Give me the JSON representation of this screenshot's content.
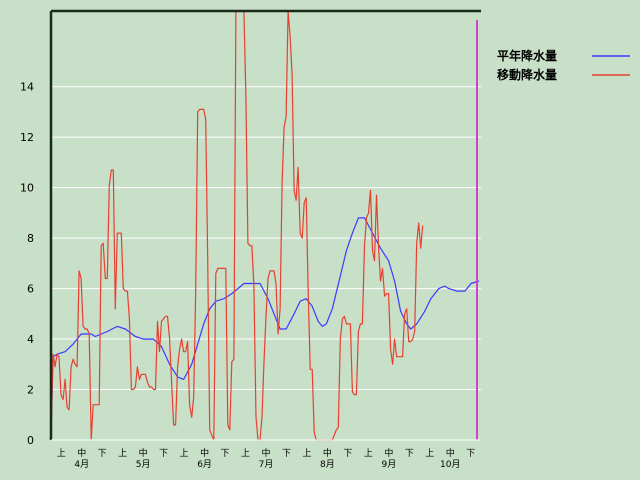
{
  "chart_data": {
    "type": "line",
    "title": "",
    "xlabel": "",
    "ylabel": "",
    "ylim": [
      0,
      17
    ],
    "yticks": [
      0,
      2,
      4,
      6,
      8,
      10,
      12,
      14
    ],
    "grid": true,
    "legend_position": "top-right",
    "x_period_labels": [
      "上",
      "中",
      "下",
      "上",
      "中",
      "下",
      "上",
      "中",
      "下",
      "上",
      "中",
      "下",
      "上",
      "中",
      "下",
      "上",
      "中",
      "下",
      "上",
      "中",
      "下"
    ],
    "x_month_labels": [
      "4月",
      "5月",
      "6月",
      "7月",
      "8月",
      "9月",
      "10月"
    ],
    "n_days": 214,
    "series": [
      {
        "name": "平年降水量",
        "color": "#3a3aff",
        "points": [
          [
            0,
            0
          ],
          [
            1,
            3.3
          ],
          [
            3,
            3.4
          ],
          [
            7,
            3.5
          ],
          [
            11,
            3.8
          ],
          [
            15,
            4.2
          ],
          [
            20,
            4.2
          ],
          [
            22,
            4.1
          ],
          [
            28,
            4.3
          ],
          [
            33,
            4.5
          ],
          [
            37,
            4.4
          ],
          [
            42,
            4.1
          ],
          [
            46,
            4.0
          ],
          [
            51,
            4.0
          ],
          [
            55,
            3.7
          ],
          [
            59,
            3.0
          ],
          [
            63,
            2.5
          ],
          [
            66,
            2.4
          ],
          [
            70,
            3.0
          ],
          [
            73,
            3.8
          ],
          [
            76,
            4.6
          ],
          [
            79,
            5.2
          ],
          [
            82,
            5.5
          ],
          [
            86,
            5.6
          ],
          [
            90,
            5.8
          ],
          [
            93,
            6.0
          ],
          [
            96,
            6.2
          ],
          [
            104,
            6.2
          ],
          [
            108,
            5.6
          ],
          [
            111,
            5.0
          ],
          [
            114,
            4.4
          ],
          [
            117,
            4.4
          ],
          [
            121,
            5.0
          ],
          [
            124,
            5.5
          ],
          [
            127,
            5.6
          ],
          [
            130,
            5.3
          ],
          [
            133,
            4.7
          ],
          [
            135,
            4.5
          ],
          [
            137,
            4.6
          ],
          [
            140,
            5.2
          ],
          [
            144,
            6.5
          ],
          [
            147,
            7.5
          ],
          [
            150,
            8.2
          ],
          [
            153,
            8.8
          ],
          [
            156,
            8.8
          ],
          [
            160,
            8.2
          ],
          [
            164,
            7.6
          ],
          [
            168,
            7.1
          ],
          [
            171,
            6.3
          ],
          [
            174,
            5.1
          ],
          [
            177,
            4.6
          ],
          [
            179,
            4.4
          ],
          [
            182,
            4.6
          ],
          [
            186,
            5.1
          ],
          [
            189,
            5.6
          ],
          [
            193,
            6.0
          ],
          [
            196,
            6.1
          ],
          [
            198,
            6.0
          ],
          [
            202,
            5.9
          ],
          [
            206,
            5.9
          ],
          [
            209,
            6.2
          ],
          [
            213,
            6.3
          ]
        ]
      },
      {
        "name": "移動降水量",
        "color": "#e84030",
        "points": [
          [
            0,
            0
          ],
          [
            1,
            3.4
          ],
          [
            2,
            2.9
          ],
          [
            3,
            3.4
          ],
          [
            4,
            3.3
          ],
          [
            5,
            1.8
          ],
          [
            6,
            1.6
          ],
          [
            7,
            2.4
          ],
          [
            8,
            1.3
          ],
          [
            9,
            1.2
          ],
          [
            10,
            2.9
          ],
          [
            11,
            3.2
          ],
          [
            12,
            3.0
          ],
          [
            13,
            2.9
          ],
          [
            14,
            6.7
          ],
          [
            15,
            6.4
          ],
          [
            16,
            4.5
          ],
          [
            17,
            4.4
          ],
          [
            18,
            4.4
          ],
          [
            19,
            4.2
          ],
          [
            20,
            0.0
          ],
          [
            21,
            1.4
          ],
          [
            22,
            1.4
          ],
          [
            23,
            1.4
          ],
          [
            24,
            1.4
          ],
          [
            25,
            7.7
          ],
          [
            26,
            7.8
          ],
          [
            27,
            6.4
          ],
          [
            28,
            6.4
          ],
          [
            29,
            10.1
          ],
          [
            30,
            10.7
          ],
          [
            31,
            10.7
          ],
          [
            32,
            5.2
          ],
          [
            33,
            8.2
          ],
          [
            34,
            8.2
          ],
          [
            35,
            8.2
          ],
          [
            36,
            6.0
          ],
          [
            37,
            5.9
          ],
          [
            38,
            5.9
          ],
          [
            39,
            4.8
          ],
          [
            40,
            2.0
          ],
          [
            41,
            2.0
          ],
          [
            42,
            2.1
          ],
          [
            43,
            2.9
          ],
          [
            44,
            2.4
          ],
          [
            45,
            2.6
          ],
          [
            46,
            2.6
          ],
          [
            47,
            2.6
          ],
          [
            48,
            2.3
          ],
          [
            49,
            2.1
          ],
          [
            50,
            2.1
          ],
          [
            51,
            2.0
          ],
          [
            52,
            2.0
          ],
          [
            53,
            4.7
          ],
          [
            54,
            3.5
          ],
          [
            55,
            4.7
          ],
          [
            56,
            4.8
          ],
          [
            57,
            4.9
          ],
          [
            58,
            4.9
          ],
          [
            59,
            4.0
          ],
          [
            60,
            2.3
          ],
          [
            61,
            0.6
          ],
          [
            62,
            0.6
          ],
          [
            63,
            2.9
          ],
          [
            64,
            3.6
          ],
          [
            65,
            4.0
          ],
          [
            66,
            3.5
          ],
          [
            67,
            3.5
          ],
          [
            68,
            3.9
          ],
          [
            69,
            1.4
          ],
          [
            70,
            0.9
          ],
          [
            71,
            1.7
          ],
          [
            72,
            5.9
          ],
          [
            73,
            13.0
          ],
          [
            74,
            13.1
          ],
          [
            75,
            13.1
          ],
          [
            76,
            13.1
          ],
          [
            77,
            12.7
          ],
          [
            78,
            7.2
          ],
          [
            79,
            0.4
          ],
          [
            80,
            0.2
          ],
          [
            81,
            0.0
          ],
          [
            82,
            6.6
          ],
          [
            83,
            6.8
          ],
          [
            84,
            6.8
          ],
          [
            85,
            6.8
          ],
          [
            86,
            6.8
          ],
          [
            87,
            6.8
          ],
          [
            88,
            0.6
          ],
          [
            89,
            0.4
          ],
          [
            90,
            3.1
          ],
          [
            91,
            3.2
          ],
          [
            92,
            17.5
          ],
          [
            96,
            17.5
          ],
          [
            97,
            13.6
          ],
          [
            98,
            7.8
          ],
          [
            99,
            7.7
          ],
          [
            100,
            7.7
          ],
          [
            101,
            6.1
          ],
          [
            102,
            0.9
          ],
          [
            103,
            0.0
          ],
          [
            104,
            0.0
          ],
          [
            105,
            0.9
          ],
          [
            106,
            3.1
          ],
          [
            107,
            4.9
          ],
          [
            108,
            6.4
          ],
          [
            109,
            6.7
          ],
          [
            110,
            6.7
          ],
          [
            111,
            6.7
          ],
          [
            112,
            6.2
          ],
          [
            113,
            4.2
          ],
          [
            114,
            5.2
          ],
          [
            115,
            10.2
          ],
          [
            116,
            12.4
          ],
          [
            117,
            12.8
          ],
          [
            118,
            17.5
          ],
          [
            119,
            16.0
          ],
          [
            120,
            14.5
          ],
          [
            121,
            9.9
          ],
          [
            122,
            9.5
          ],
          [
            123,
            10.8
          ],
          [
            124,
            8.2
          ],
          [
            125,
            8.0
          ],
          [
            126,
            9.4
          ],
          [
            127,
            9.6
          ],
          [
            128,
            5.9
          ],
          [
            129,
            2.8
          ],
          [
            130,
            2.8
          ],
          [
            131,
            0.3
          ],
          [
            132,
            0.0
          ],
          [
            133,
            0.0
          ],
          [
            134,
            0.0
          ],
          [
            135,
            0.0
          ],
          [
            136,
            0.0
          ],
          [
            137,
            0.0
          ],
          [
            138,
            0.0
          ],
          [
            139,
            0.0
          ],
          [
            140,
            0.0
          ],
          [
            141,
            0.2
          ],
          [
            142,
            0.4
          ],
          [
            143,
            0.5
          ],
          [
            144,
            4.0
          ],
          [
            145,
            4.8
          ],
          [
            146,
            4.9
          ],
          [
            147,
            4.6
          ],
          [
            148,
            4.6
          ],
          [
            149,
            4.6
          ],
          [
            150,
            1.9
          ],
          [
            151,
            1.8
          ],
          [
            152,
            1.8
          ],
          [
            153,
            4.3
          ],
          [
            154,
            4.6
          ],
          [
            155,
            4.6
          ],
          [
            156,
            7.7
          ],
          [
            157,
            8.8
          ],
          [
            158,
            9.0
          ],
          [
            159,
            9.9
          ],
          [
            160,
            7.5
          ],
          [
            161,
            7.1
          ],
          [
            162,
            9.7
          ],
          [
            163,
            7.7
          ],
          [
            164,
            6.3
          ],
          [
            165,
            6.8
          ],
          [
            166,
            5.7
          ],
          [
            167,
            5.8
          ],
          [
            168,
            5.8
          ],
          [
            169,
            3.6
          ],
          [
            170,
            3.0
          ],
          [
            171,
            4.0
          ],
          [
            172,
            3.3
          ],
          [
            173,
            3.3
          ],
          [
            174,
            3.3
          ],
          [
            175,
            3.3
          ],
          [
            176,
            5.0
          ],
          [
            177,
            5.2
          ],
          [
            178,
            3.9
          ],
          [
            179,
            3.9
          ],
          [
            180,
            4.0
          ],
          [
            181,
            4.3
          ],
          [
            182,
            7.8
          ],
          [
            183,
            8.6
          ],
          [
            184,
            7.6
          ],
          [
            185,
            8.5
          ]
        ]
      }
    ]
  }
}
